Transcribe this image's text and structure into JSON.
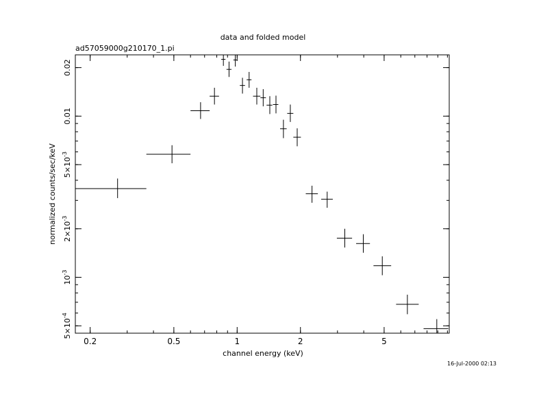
{
  "chart_data": {
    "type": "scatter",
    "title": "data and folded model",
    "subtitle": "ad57059000g210170_1.pi",
    "xlabel": "channel energy (keV)",
    "ylabel": "normalized counts/sec/keV",
    "timestamp": "16-Jul-2000 02:13",
    "x_scale": "log",
    "y_scale": "log",
    "xlim": [
      0.17,
      10.2
    ],
    "ylim": [
      0.00045,
      0.024
    ],
    "x_ticks": [
      {
        "value": 0.2,
        "label": "0.2"
      },
      {
        "value": 0.5,
        "label": "0.5"
      },
      {
        "value": 1,
        "label": "1"
      },
      {
        "value": 2,
        "label": "2"
      },
      {
        "value": 5,
        "label": "5"
      }
    ],
    "y_ticks": [
      {
        "value": 0.0005,
        "mantissa": "5×10",
        "exp": "-4"
      },
      {
        "value": 0.001,
        "mantissa": "10",
        "exp": "-3"
      },
      {
        "value": 0.002,
        "mantissa": "2×10",
        "exp": "-3"
      },
      {
        "value": 0.005,
        "mantissa": "5×10",
        "exp": "-3"
      },
      {
        "value": 0.01,
        "mantissa": "0.01",
        "exp": ""
      },
      {
        "value": 0.02,
        "mantissa": "0.02",
        "exp": ""
      }
    ],
    "points": [
      {
        "x": 0.27,
        "xlo": 0.17,
        "xhi": 0.37,
        "y": 0.00355,
        "ylo": 0.0031,
        "yhi": 0.0041
      },
      {
        "x": 0.49,
        "xlo": 0.37,
        "xhi": 0.6,
        "y": 0.0058,
        "ylo": 0.0051,
        "yhi": 0.0066
      },
      {
        "x": 0.67,
        "xlo": 0.6,
        "xhi": 0.74,
        "y": 0.0108,
        "ylo": 0.0096,
        "yhi": 0.0122
      },
      {
        "x": 0.78,
        "xlo": 0.74,
        "xhi": 0.82,
        "y": 0.0133,
        "ylo": 0.0118,
        "yhi": 0.015
      },
      {
        "x": 0.86,
        "xlo": 0.84,
        "xhi": 0.88,
        "y": 0.0225,
        "ylo": 0.0205,
        "yhi": 0.0245
      },
      {
        "x": 0.915,
        "xlo": 0.89,
        "xhi": 0.94,
        "y": 0.0195,
        "ylo": 0.0175,
        "yhi": 0.0218
      },
      {
        "x": 0.98,
        "xlo": 0.96,
        "xhi": 1.0,
        "y": 0.0223,
        "ylo": 0.0203,
        "yhi": 0.0243
      },
      {
        "x": 1.06,
        "xlo": 1.03,
        "xhi": 1.09,
        "y": 0.0155,
        "ylo": 0.0138,
        "yhi": 0.0173
      },
      {
        "x": 1.14,
        "xlo": 1.11,
        "xhi": 1.17,
        "y": 0.0168,
        "ylo": 0.015,
        "yhi": 0.0188
      },
      {
        "x": 1.24,
        "xlo": 1.19,
        "xhi": 1.29,
        "y": 0.0133,
        "ylo": 0.0118,
        "yhi": 0.015
      },
      {
        "x": 1.33,
        "xlo": 1.29,
        "xhi": 1.37,
        "y": 0.013,
        "ylo": 0.0115,
        "yhi": 0.0147
      },
      {
        "x": 1.43,
        "xlo": 1.38,
        "xhi": 1.47,
        "y": 0.0117,
        "ylo": 0.0103,
        "yhi": 0.0133
      },
      {
        "x": 1.53,
        "xlo": 1.48,
        "xhi": 1.57,
        "y": 0.0118,
        "ylo": 0.0104,
        "yhi": 0.0134
      },
      {
        "x": 1.66,
        "xlo": 1.6,
        "xhi": 1.72,
        "y": 0.00835,
        "ylo": 0.0073,
        "yhi": 0.0095
      },
      {
        "x": 1.79,
        "xlo": 1.73,
        "xhi": 1.85,
        "y": 0.0104,
        "ylo": 0.0092,
        "yhi": 0.0118
      },
      {
        "x": 1.93,
        "xlo": 1.85,
        "xhi": 2.01,
        "y": 0.0074,
        "ylo": 0.0065,
        "yhi": 0.0084
      },
      {
        "x": 2.27,
        "xlo": 2.12,
        "xhi": 2.42,
        "y": 0.0033,
        "ylo": 0.0029,
        "yhi": 0.0037
      },
      {
        "x": 2.68,
        "xlo": 2.51,
        "xhi": 2.85,
        "y": 0.00305,
        "ylo": 0.0027,
        "yhi": 0.0034
      },
      {
        "x": 3.25,
        "xlo": 2.98,
        "xhi": 3.52,
        "y": 0.00175,
        "ylo": 0.00153,
        "yhi": 0.002
      },
      {
        "x": 3.98,
        "xlo": 3.68,
        "xhi": 4.28,
        "y": 0.00162,
        "ylo": 0.00142,
        "yhi": 0.00185
      },
      {
        "x": 4.9,
        "xlo": 4.45,
        "xhi": 5.4,
        "y": 0.00118,
        "ylo": 0.00103,
        "yhi": 0.00135
      },
      {
        "x": 6.45,
        "xlo": 5.7,
        "xhi": 7.3,
        "y": 0.00068,
        "ylo": 0.00059,
        "yhi": 0.00078
      },
      {
        "x": 8.9,
        "xlo": 7.7,
        "xhi": 10.1,
        "y": 0.00048,
        "ylo": 0.00042,
        "yhi": 0.00055
      }
    ]
  }
}
